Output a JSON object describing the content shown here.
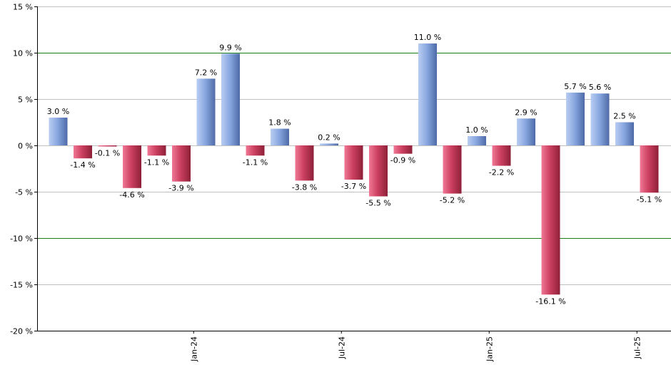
{
  "chart_data": {
    "type": "bar",
    "title": "",
    "xlabel": "",
    "ylabel": "",
    "ylim": [
      -20,
      15
    ],
    "y_ticks": [
      15,
      10,
      5,
      0,
      -5,
      -10,
      -15,
      -20
    ],
    "y_tick_labels": [
      "15 %",
      "10 %",
      "5 %",
      "0 %",
      "-5 %",
      "-10 %",
      "-15 %",
      "-20 %"
    ],
    "highlight_lines": [
      10,
      -10
    ],
    "grid": true,
    "x_tick_labels": [
      {
        "label": "Jan-24",
        "index": 5.5
      },
      {
        "label": "Jul-24",
        "index": 11.5
      },
      {
        "label": "Jan-25",
        "index": 17.5
      },
      {
        "label": "Jul-25",
        "index": 23.5
      }
    ],
    "values": [
      3.0,
      -1.4,
      -0.1,
      -4.6,
      -1.1,
      -3.9,
      7.2,
      9.9,
      -1.1,
      1.8,
      -3.8,
      0.2,
      -3.7,
      -5.5,
      -0.9,
      11.0,
      -5.2,
      1.0,
      -2.2,
      2.9,
      -16.1,
      5.7,
      5.6,
      2.5,
      -5.1
    ],
    "value_labels": [
      "3.0 %",
      "-1.4 %",
      "-0.1 %",
      "-4.6 %",
      "-1.1 %",
      "-3.9 %",
      "7.2 %",
      "9.9 %",
      "-1.1 %",
      "1.8 %",
      "-3.8 %",
      "0.2 %",
      "-3.7 %",
      "-5.5 %",
      "-0.9 %",
      "11.0 %",
      "-5.2 %",
      "1.0 %",
      "-2.2 %",
      "2.9 %",
      "-16.1 %",
      "5.7 %",
      "5.6 %",
      "2.5 %",
      "-5.1 %"
    ],
    "colors": {
      "positive": "#7f9fd8",
      "positive_light": "#b9cdf2",
      "positive_dark": "#4d6aa8",
      "negative": "#c43c5a",
      "negative_light": "#f07896",
      "negative_dark": "#8e2038",
      "grid": "#c0c0c0",
      "highlight": "#1a7f1a",
      "axis": "#000000"
    }
  }
}
